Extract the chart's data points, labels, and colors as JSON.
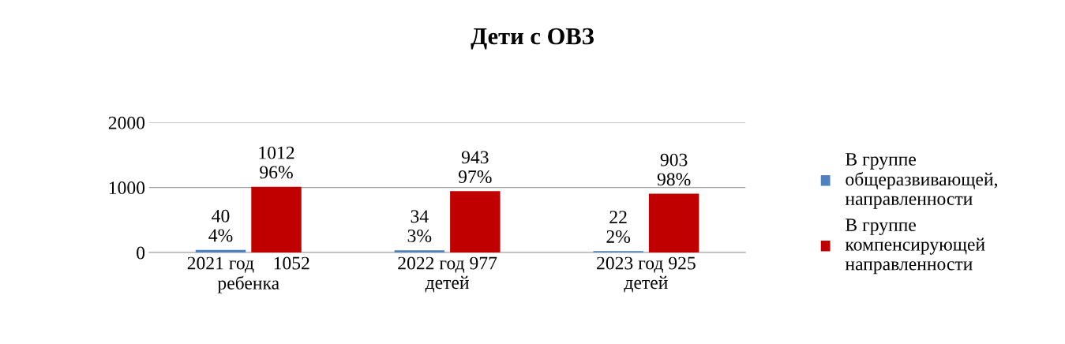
{
  "chart_data": {
    "type": "bar",
    "title": "Дети с ОВЗ",
    "categories": [
      "2021 год    1052 ребенка",
      "2022 год 977 детей",
      "2023 год 925 детей"
    ],
    "series": [
      {
        "name": "В группе\nобщеразвивающей,\nнаправленности",
        "color": "#4f81bd",
        "values": [
          40,
          34,
          22
        ],
        "value_labels": [
          "40\n4%",
          "34\n3%",
          "22\n2%"
        ]
      },
      {
        "name": "В группе\nкомпенсирующей\nнаправленности",
        "color": "#c00000",
        "values": [
          1012,
          943,
          903
        ],
        "value_labels": [
          "1012\n96%",
          "943\n97%",
          "903\n98%"
        ]
      }
    ],
    "ylim": [
      0,
      2000
    ],
    "yticks": [
      0,
      1000,
      2000
    ],
    "grid": "y",
    "legend": "right"
  }
}
